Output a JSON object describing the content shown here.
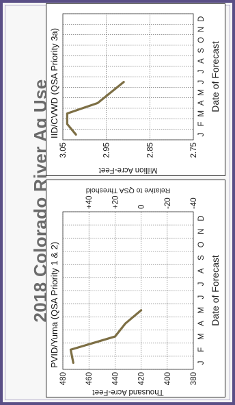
{
  "page_title": "2018 Colorado River Ag Use",
  "chart_data": [
    {
      "type": "line",
      "title": "PVID/Yuma (QSA Priority 1 & 2)",
      "xlabel": "Date of Forecast",
      "ylabel": "Thousand Acre-Feet",
      "y2label": "Relative to  QSA Threshold",
      "categories": [
        "J",
        "F",
        "M",
        "A",
        "M",
        "J",
        "J",
        "A",
        "S",
        "O",
        "N",
        "D"
      ],
      "ylim": [
        380,
        480
      ],
      "yticks": [
        380,
        400,
        420,
        440,
        460,
        480
      ],
      "y2ticks": [
        "+40",
        "+20",
        "0",
        "-20",
        "-40"
      ],
      "y2_threshold": 420,
      "series": [
        {
          "name": "",
          "color": "#7d6f45",
          "values": [
            472,
            474,
            440,
            432,
            420,
            null,
            null,
            null,
            null,
            null,
            null,
            null
          ]
        }
      ],
      "grid": true
    },
    {
      "type": "line",
      "title": "IID/CVWD (QSA Priority 3a)",
      "xlabel": "Date of Forecast",
      "ylabel": "Million Acre-Feet",
      "categories": [
        "J",
        "F",
        "M",
        "A",
        "M",
        "J",
        "J",
        "A",
        "S",
        "O",
        "N",
        "D"
      ],
      "ylim": [
        2.75,
        3.05
      ],
      "yticks": [
        "2.75",
        "2.85",
        "2.95",
        "3.05"
      ],
      "series": [
        {
          "name": "",
          "color": "#7d6f45",
          "values": [
            3.02,
            3.04,
            3.04,
            2.97,
            2.94,
            2.91,
            null,
            null,
            null,
            null,
            null,
            null
          ]
        }
      ],
      "grid": true
    }
  ]
}
